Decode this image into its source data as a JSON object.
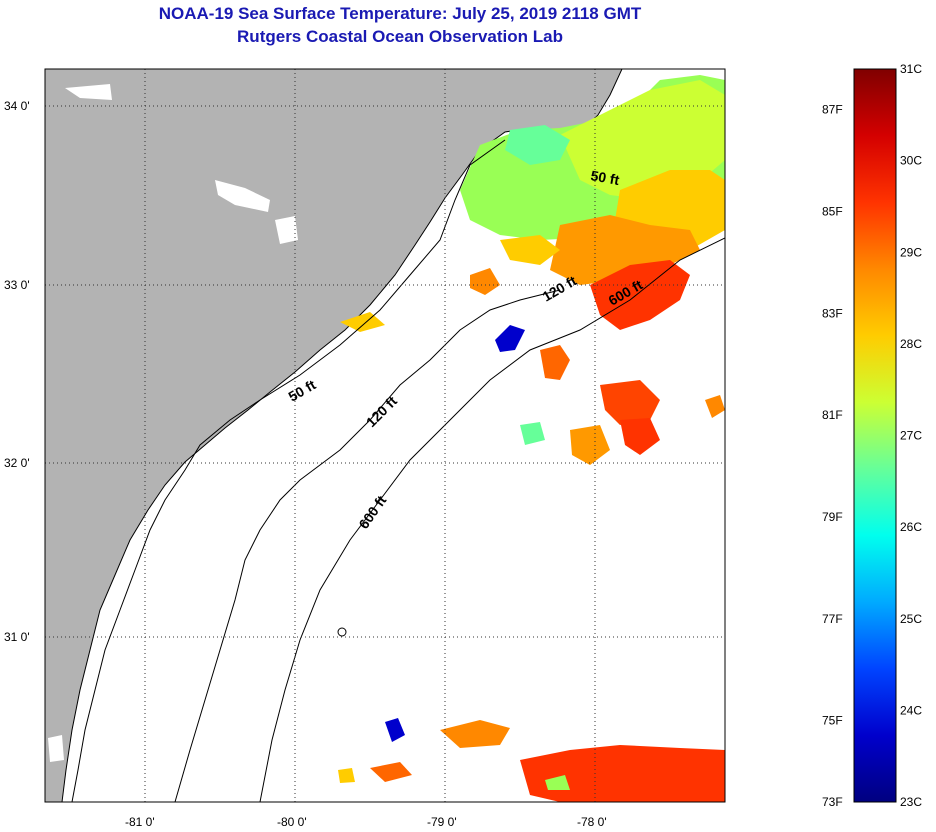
{
  "title": {
    "line1": "NOAA-19 Sea Surface Temperature:  July 25, 2019 2118 GMT",
    "line2": "Rutgers Coastal Ocean Observation Lab"
  },
  "map": {
    "lat_labels": [
      "34 0'",
      "33 0'",
      "32 0'",
      "31 0'"
    ],
    "lon_labels": [
      "-81 0'",
      "-80 0'",
      "-79 0'",
      "-78 0'"
    ],
    "contour_labels": [
      "50 ft",
      "120 ft",
      "600 ft",
      "50 ft",
      "120 ft",
      "600 ft"
    ],
    "colors": {
      "land": "#b3b3b3",
      "ocean_nodata": "#ffffff",
      "coast": "#000000"
    }
  },
  "colorbar": {
    "celsius_labels": [
      "31C",
      "30C",
      "29C",
      "28C",
      "27C",
      "26C",
      "25C",
      "24C",
      "23C"
    ],
    "fahrenheit_labels": [
      "87F",
      "85F",
      "83F",
      "81F",
      "79F",
      "77F",
      "75F",
      "73F"
    ],
    "gradient_stops": [
      "#800000",
      "#d40000",
      "#ff3300",
      "#ff8800",
      "#ffcc00",
      "#ccff33",
      "#66ff99",
      "#00ffee",
      "#00aaff",
      "#0044ff",
      "#0000cc",
      "#000080"
    ]
  }
}
